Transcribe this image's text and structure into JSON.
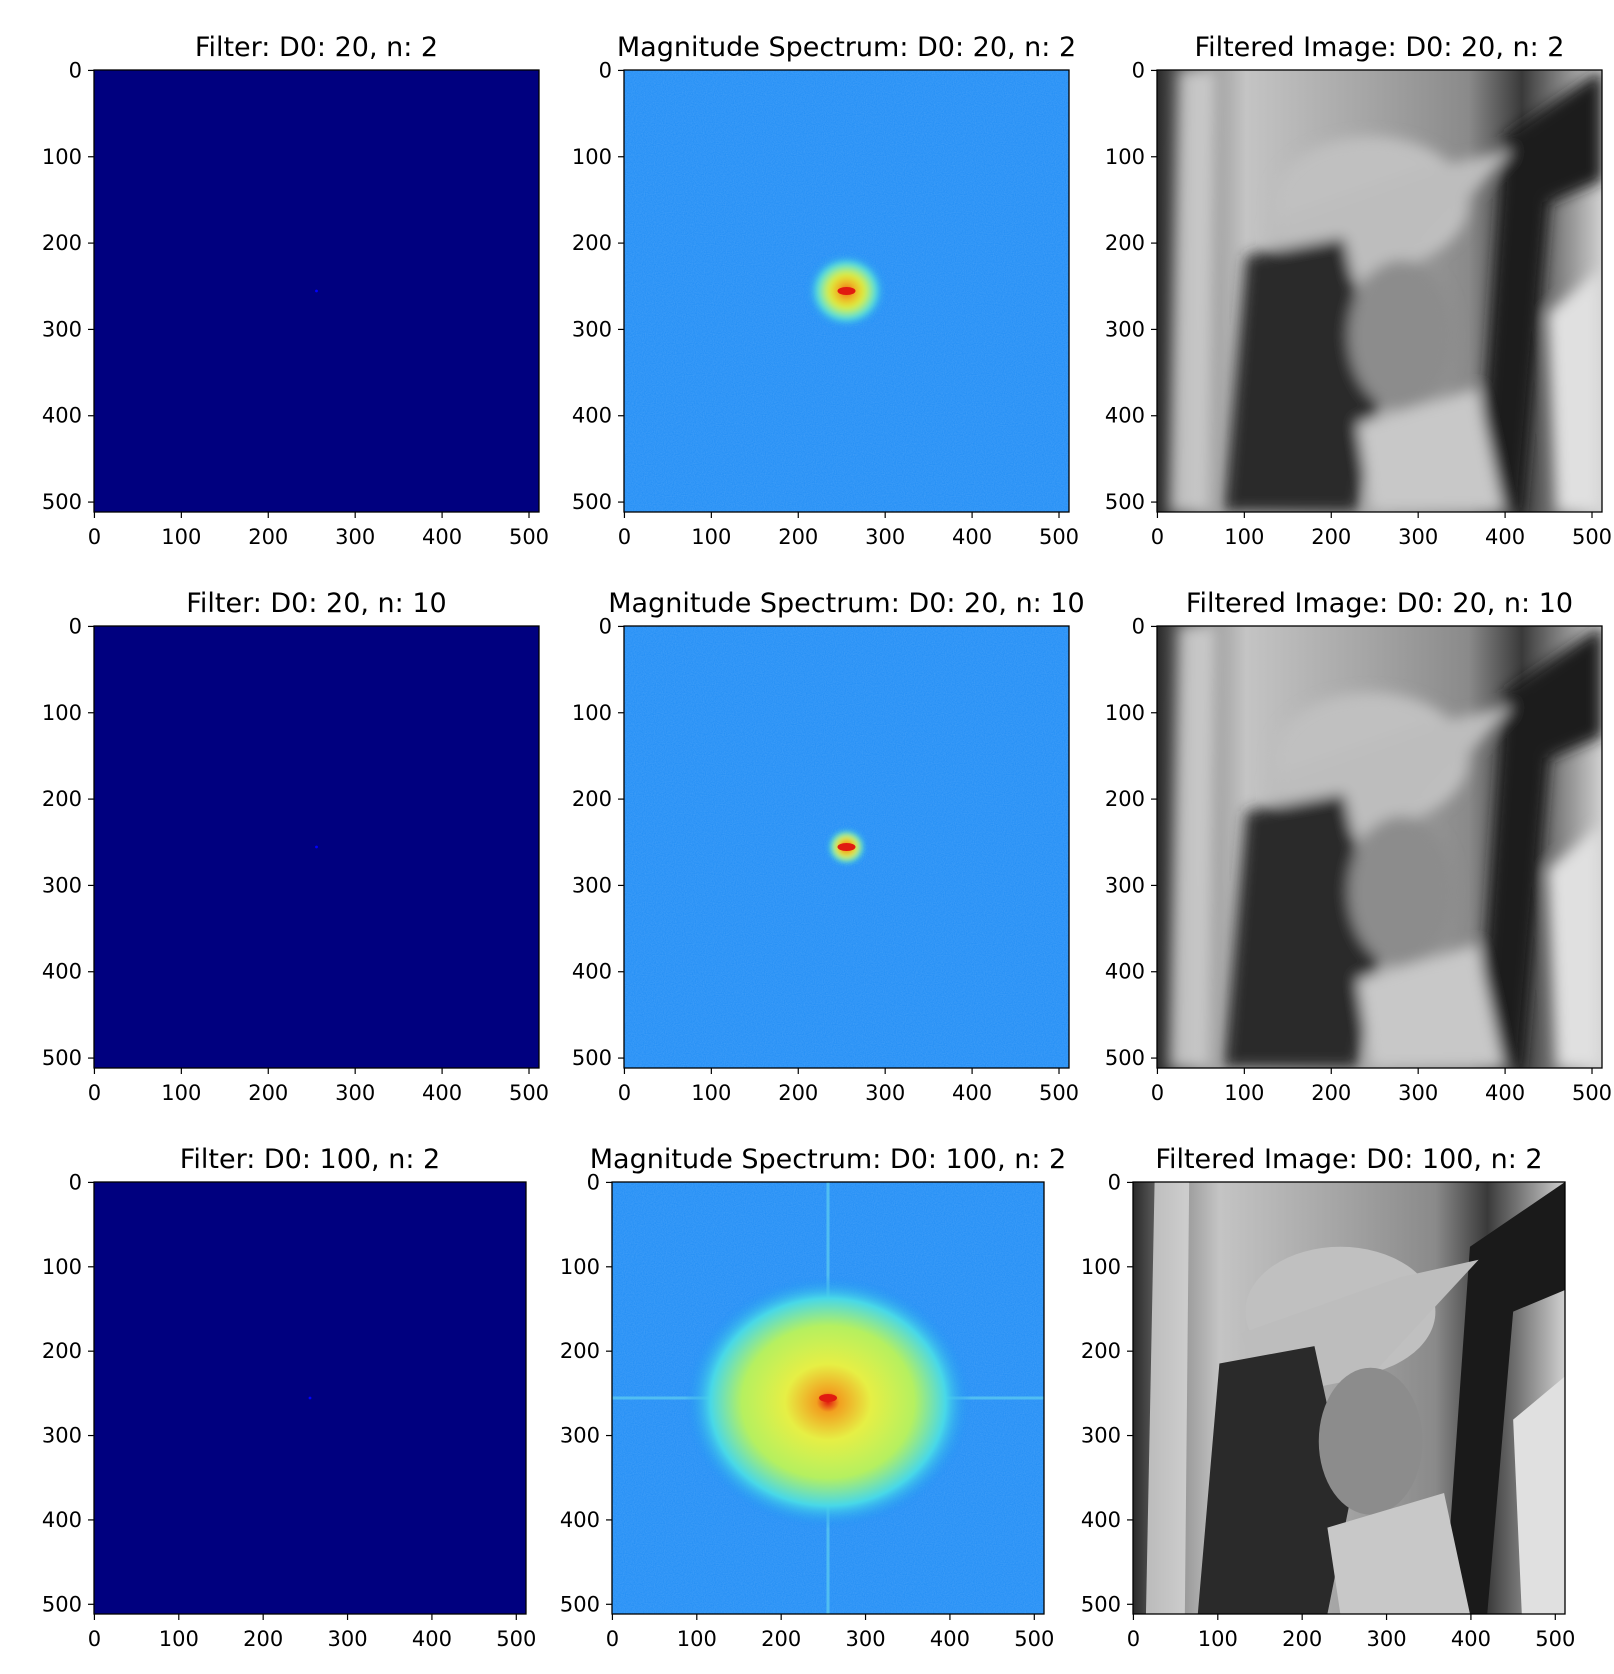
{
  "chart_data": [
    {
      "type": "heatmap",
      "title": "Filter: D0: 20, n: 2",
      "kind": "filter",
      "D0": 20,
      "n": 2,
      "xlim": [
        0,
        511
      ],
      "ylim": [
        511,
        0
      ],
      "xticks": [
        "0",
        "100",
        "200",
        "300",
        "400",
        "500"
      ],
      "yticks": [
        "0",
        "100",
        "200",
        "300",
        "400",
        "500"
      ],
      "colormap": "jet"
    },
    {
      "type": "heatmap",
      "title": "Magnitude Spectrum: D0: 20, n: 2",
      "kind": "spectrum",
      "D0": 20,
      "n": 2,
      "xlim": [
        0,
        511
      ],
      "ylim": [
        511,
        0
      ],
      "xticks": [
        "0",
        "100",
        "200",
        "300",
        "400",
        "500"
      ],
      "yticks": [
        "0",
        "100",
        "200",
        "300",
        "400",
        "500"
      ],
      "colormap": "jet"
    },
    {
      "type": "heatmap",
      "title": "Filtered Image: D0: 20, n: 2",
      "kind": "image",
      "D0": 20,
      "n": 2,
      "xlim": [
        0,
        511
      ],
      "ylim": [
        511,
        0
      ],
      "xticks": [
        "0",
        "100",
        "200",
        "300",
        "400",
        "500"
      ],
      "yticks": [
        "0",
        "100",
        "200",
        "300",
        "400",
        "500"
      ],
      "colormap": "gray"
    },
    {
      "type": "heatmap",
      "title": "Filter: D0: 20, n: 10",
      "kind": "filter",
      "D0": 20,
      "n": 10,
      "xlim": [
        0,
        511
      ],
      "ylim": [
        511,
        0
      ],
      "xticks": [
        "0",
        "100",
        "200",
        "300",
        "400",
        "500"
      ],
      "yticks": [
        "0",
        "100",
        "200",
        "300",
        "400",
        "500"
      ],
      "colormap": "jet"
    },
    {
      "type": "heatmap",
      "title": "Magnitude Spectrum: D0: 20, n: 10",
      "kind": "spectrum",
      "D0": 20,
      "n": 10,
      "xlim": [
        0,
        511
      ],
      "ylim": [
        511,
        0
      ],
      "xticks": [
        "0",
        "100",
        "200",
        "300",
        "400",
        "500"
      ],
      "yticks": [
        "0",
        "100",
        "200",
        "300",
        "400",
        "500"
      ],
      "colormap": "jet"
    },
    {
      "type": "heatmap",
      "title": "Filtered Image: D0: 20, n: 10",
      "kind": "image",
      "D0": 20,
      "n": 10,
      "xlim": [
        0,
        511
      ],
      "ylim": [
        511,
        0
      ],
      "xticks": [
        "0",
        "100",
        "200",
        "300",
        "400",
        "500"
      ],
      "yticks": [
        "0",
        "100",
        "200",
        "300",
        "400",
        "500"
      ],
      "colormap": "gray"
    },
    {
      "type": "heatmap",
      "title": "Filter: D0: 100, n: 2",
      "kind": "filter",
      "D0": 100,
      "n": 2,
      "xlim": [
        0,
        511
      ],
      "ylim": [
        511,
        0
      ],
      "xticks": [
        "0",
        "100",
        "200",
        "300",
        "400",
        "500"
      ],
      "yticks": [
        "0",
        "100",
        "200",
        "300",
        "400",
        "500"
      ],
      "colormap": "jet"
    },
    {
      "type": "heatmap",
      "title": "Magnitude Spectrum: D0: 100, n: 2",
      "kind": "spectrum",
      "D0": 100,
      "n": 2,
      "xlim": [
        0,
        511
      ],
      "ylim": [
        511,
        0
      ],
      "xticks": [
        "0",
        "100",
        "200",
        "300",
        "400",
        "500"
      ],
      "yticks": [
        "0",
        "100",
        "200",
        "300",
        "400",
        "500"
      ],
      "colormap": "jet"
    },
    {
      "type": "heatmap",
      "title": "Filtered Image: D0: 100, n: 2",
      "kind": "image",
      "D0": 100,
      "n": 2,
      "xlim": [
        0,
        511
      ],
      "ylim": [
        511,
        0
      ],
      "xticks": [
        "0",
        "100",
        "200",
        "300",
        "400",
        "500"
      ],
      "yticks": [
        "0",
        "100",
        "200",
        "300",
        "400",
        "500"
      ],
      "colormap": "gray"
    }
  ],
  "colors": {
    "filter_background": "#00007f",
    "filter_center": "#0000ff",
    "spectrum_background": "#1e8cf5",
    "spectrum_mid": "#2fd0ef",
    "spectrum_high": "#c8f050",
    "spectrum_peak": "#e11b10",
    "image_light": "#c8c8c8",
    "image_dark": "#1e1e1e"
  }
}
